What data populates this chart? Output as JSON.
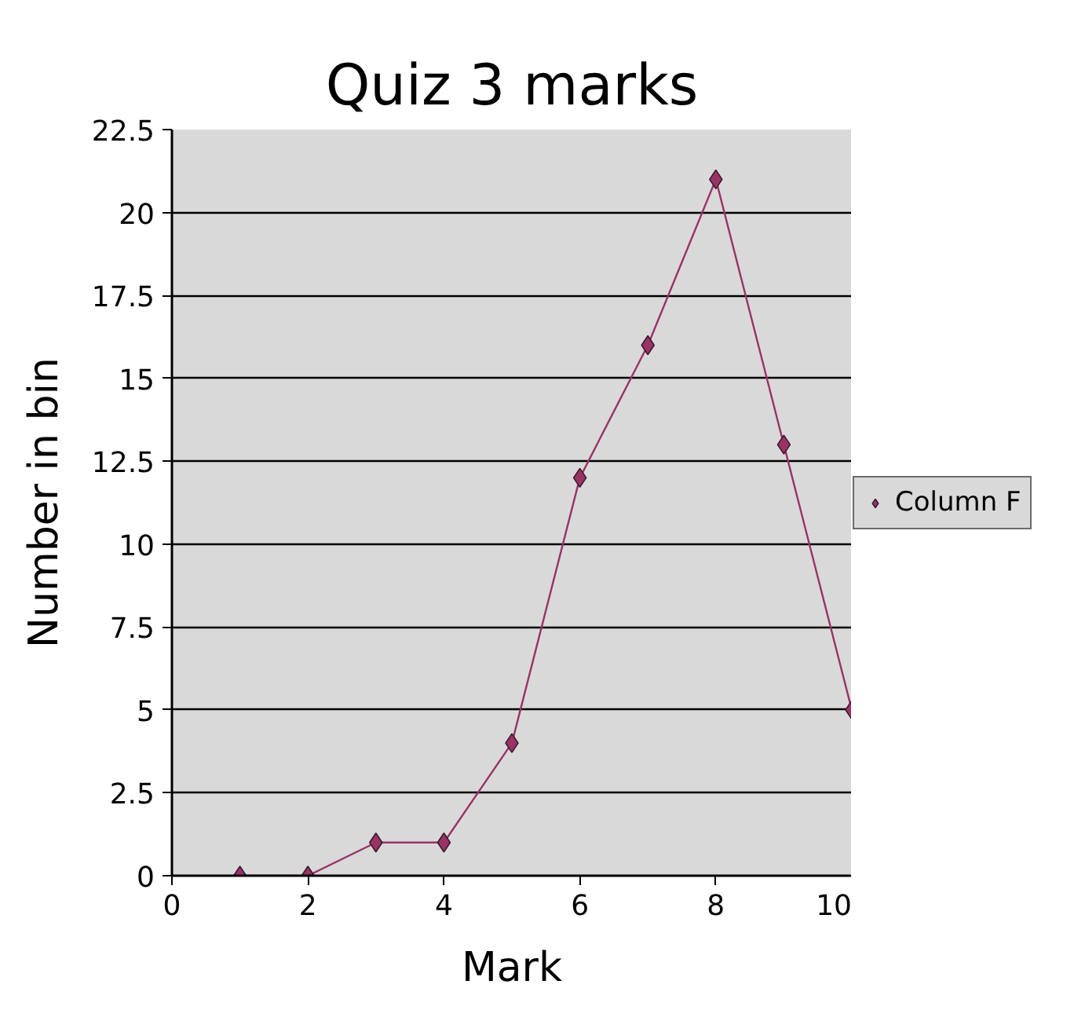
{
  "chart_data": {
    "type": "line",
    "title": "Quiz 3 marks",
    "xlabel": "Mark",
    "ylabel": "Number in bin",
    "x": [
      1,
      2,
      3,
      4,
      5,
      6,
      7,
      8,
      9,
      10
    ],
    "series": [
      {
        "name": "Column F",
        "color": "#993366",
        "values": [
          0,
          0,
          1,
          1,
          4,
          12,
          16,
          21,
          13,
          5
        ]
      }
    ],
    "xlim": [
      0,
      10
    ],
    "xticks": [
      0,
      2,
      4,
      6,
      8,
      10
    ],
    "ylim": [
      0,
      22.5
    ],
    "yticks": [
      0,
      2.5,
      5,
      7.5,
      10,
      12.5,
      15,
      17.5,
      20,
      22.5
    ],
    "grid": "y",
    "legend": "right",
    "marker": "diamond",
    "line_style": "solid"
  }
}
